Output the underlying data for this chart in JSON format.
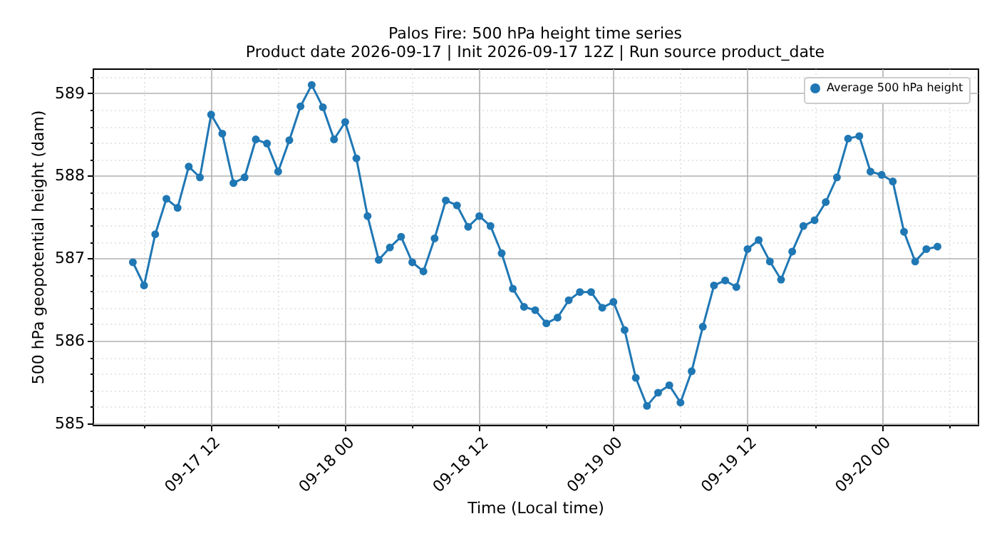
{
  "chart_data": {
    "type": "line",
    "title": "Palos Fire: 500 hPa height time series",
    "subtitle": "Product date 2026-09-17 | Init 2026-09-17 12Z | Run source product_date",
    "xlabel": "Time (Local time)",
    "ylabel": "500 hPa geopotential height (dam)",
    "x": [
      "2026-09-17T05:00",
      "2026-09-17T06:00",
      "2026-09-17T07:00",
      "2026-09-17T08:00",
      "2026-09-17T09:00",
      "2026-09-17T10:00",
      "2026-09-17T11:00",
      "2026-09-17T12:00",
      "2026-09-17T13:00",
      "2026-09-17T14:00",
      "2026-09-17T15:00",
      "2026-09-17T16:00",
      "2026-09-17T17:00",
      "2026-09-17T18:00",
      "2026-09-17T19:00",
      "2026-09-17T20:00",
      "2026-09-17T21:00",
      "2026-09-17T22:00",
      "2026-09-17T23:00",
      "2026-09-18T00:00",
      "2026-09-18T01:00",
      "2026-09-18T02:00",
      "2026-09-18T03:00",
      "2026-09-18T04:00",
      "2026-09-18T05:00",
      "2026-09-18T06:00",
      "2026-09-18T07:00",
      "2026-09-18T08:00",
      "2026-09-18T09:00",
      "2026-09-18T10:00",
      "2026-09-18T11:00",
      "2026-09-18T12:00",
      "2026-09-18T13:00",
      "2026-09-18T14:00",
      "2026-09-18T15:00",
      "2026-09-18T16:00",
      "2026-09-18T17:00",
      "2026-09-18T18:00",
      "2026-09-18T19:00",
      "2026-09-18T20:00",
      "2026-09-18T21:00",
      "2026-09-18T22:00",
      "2026-09-18T23:00",
      "2026-09-19T00:00",
      "2026-09-19T01:00",
      "2026-09-19T02:00",
      "2026-09-19T03:00",
      "2026-09-19T04:00",
      "2026-09-19T05:00",
      "2026-09-19T06:00",
      "2026-09-19T07:00",
      "2026-09-19T08:00",
      "2026-09-19T09:00",
      "2026-09-19T10:00",
      "2026-09-19T11:00",
      "2026-09-19T12:00",
      "2026-09-19T13:00",
      "2026-09-19T14:00",
      "2026-09-19T15:00",
      "2026-09-19T16:00",
      "2026-09-19T17:00",
      "2026-09-19T18:00",
      "2026-09-19T19:00",
      "2026-09-19T20:00",
      "2026-09-19T21:00",
      "2026-09-19T22:00",
      "2026-09-19T23:00",
      "2026-09-20T00:00",
      "2026-09-20T01:00",
      "2026-09-20T02:00",
      "2026-09-20T03:00",
      "2026-09-20T04:00",
      "2026-09-20T05:00"
    ],
    "series": [
      {
        "name": "Average 500 hPa height",
        "color": "#1f77b4",
        "values": [
          586.95,
          586.67,
          587.29,
          587.72,
          587.61,
          588.11,
          587.98,
          588.74,
          588.51,
          587.91,
          587.98,
          588.44,
          588.39,
          588.05,
          588.43,
          588.84,
          589.1,
          588.83,
          588.44,
          588.65,
          588.21,
          587.51,
          586.98,
          587.13,
          587.26,
          586.95,
          586.84,
          587.24,
          587.7,
          587.64,
          587.38,
          587.51,
          587.39,
          587.06,
          586.63,
          586.41,
          586.37,
          586.21,
          586.28,
          586.49,
          586.59,
          586.59,
          586.4,
          586.47,
          586.13,
          585.55,
          585.21,
          585.37,
          585.46,
          585.25,
          585.63,
          586.17,
          586.67,
          586.73,
          586.65,
          587.11,
          587.22,
          586.96,
          586.74,
          587.08,
          587.39,
          587.46,
          587.68,
          587.98,
          588.45,
          588.48,
          588.05,
          588.01,
          587.93,
          587.32,
          586.96,
          587.11,
          587.14
        ]
      }
    ],
    "xlim": [
      "2026-09-17T01:24",
      "2026-09-20T08:36"
    ],
    "xticks": [
      {
        "value": "2026-09-17T06:00",
        "label": null
      },
      {
        "value": "2026-09-17T12:00",
        "label": "09-17 12"
      },
      {
        "value": "2026-09-17T18:00",
        "label": null
      },
      {
        "value": "2026-09-18T00:00",
        "label": "09-18 00"
      },
      {
        "value": "2026-09-18T06:00",
        "label": null
      },
      {
        "value": "2026-09-18T12:00",
        "label": "09-18 12"
      },
      {
        "value": "2026-09-18T18:00",
        "label": null
      },
      {
        "value": "2026-09-19T00:00",
        "label": "09-19 00"
      },
      {
        "value": "2026-09-19T06:00",
        "label": null
      },
      {
        "value": "2026-09-19T12:00",
        "label": "09-19 12"
      },
      {
        "value": "2026-09-19T18:00",
        "label": null
      },
      {
        "value": "2026-09-20T00:00",
        "label": "09-20 00"
      },
      {
        "value": "2026-09-20T06:00",
        "label": null
      }
    ],
    "ylim": [
      584.98,
      589.3
    ],
    "yticks": [
      585,
      {
        "value": 585.2,
        "label": null
      },
      {
        "value": 585.4,
        "label": null
      },
      {
        "value": 585.6,
        "label": null
      },
      {
        "value": 585.8,
        "label": null
      },
      586,
      {
        "value": 586.2,
        "label": null
      },
      {
        "value": 586.4,
        "label": null
      },
      {
        "value": 586.6,
        "label": null
      },
      {
        "value": 586.8,
        "label": null
      },
      587,
      {
        "value": 587.2,
        "label": null
      },
      {
        "value": 587.4,
        "label": null
      },
      {
        "value": 587.6,
        "label": null
      },
      {
        "value": 587.8,
        "label": null
      },
      588,
      {
        "value": 588.2,
        "label": null
      },
      {
        "value": 588.4,
        "label": null
      },
      {
        "value": 588.6,
        "label": null
      },
      {
        "value": 588.8,
        "label": null
      },
      589,
      {
        "value": 589.2,
        "label": null
      }
    ],
    "grid": true,
    "legend": "top right",
    "marker": "circle",
    "line_style": "solid"
  }
}
